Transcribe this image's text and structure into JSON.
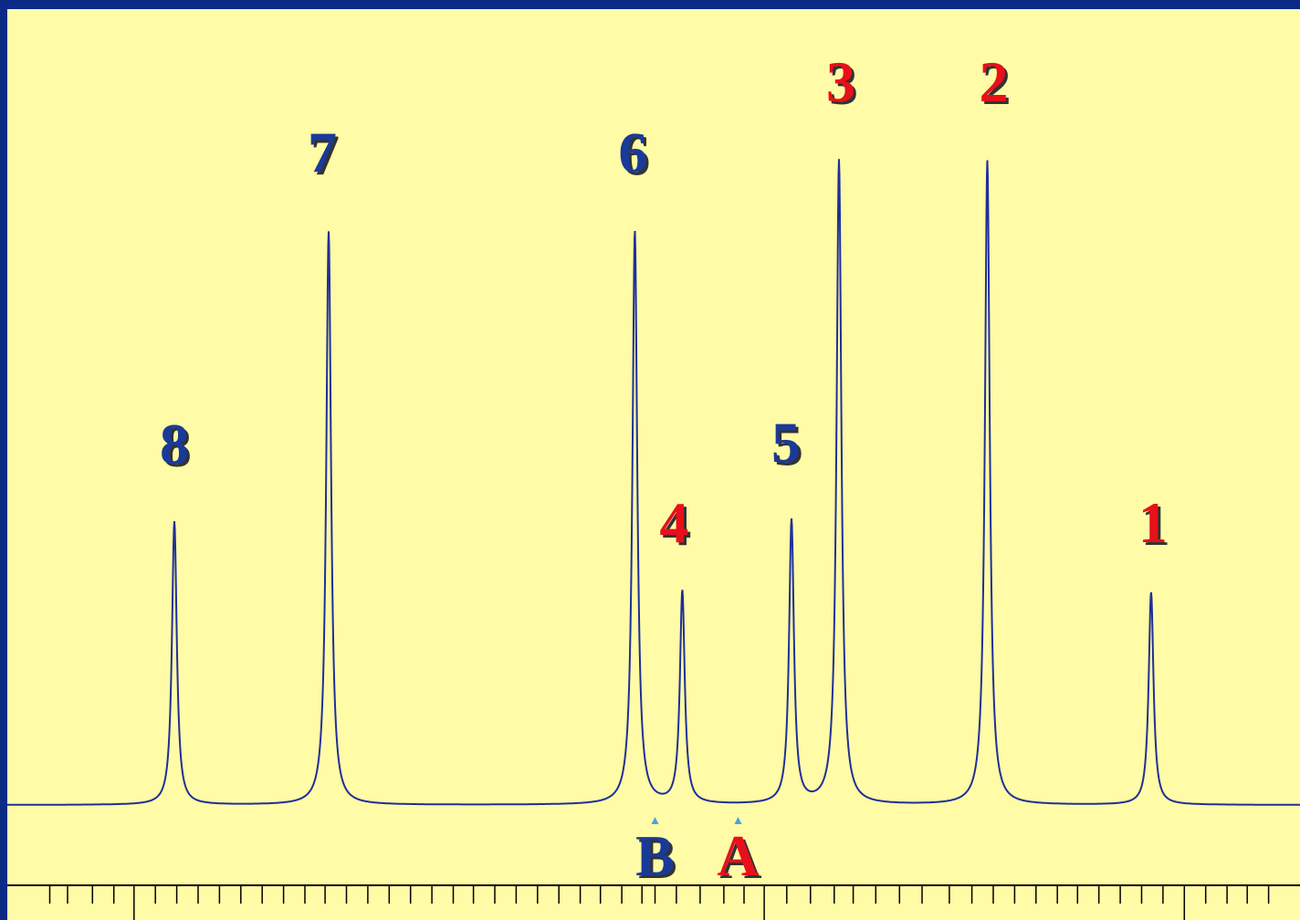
{
  "chart_data": {
    "type": "line",
    "title": "",
    "xlabel": "",
    "ylabel": "",
    "xlim": [
      0,
      1000
    ],
    "ylim": [
      0,
      1.0
    ],
    "grid": false,
    "peaks": [
      {
        "label": "8",
        "x": 20,
        "height": 0.44,
        "group": "B",
        "color": "#1a3a9a"
      },
      {
        "label": "7",
        "x": 150,
        "height": 0.89,
        "group": "B",
        "color": "#1a3a9a"
      },
      {
        "label": "6",
        "x": 408,
        "height": 0.89,
        "group": "B",
        "color": "#1a3a9a"
      },
      {
        "label": "4",
        "x": 448,
        "height": 0.33,
        "group": "A",
        "color": "#e8101a"
      },
      {
        "label": "5",
        "x": 540,
        "height": 0.44,
        "group": "B",
        "color": "#1a3a9a"
      },
      {
        "label": "3",
        "x": 580,
        "height": 1.0,
        "group": "A",
        "color": "#e8101a"
      },
      {
        "label": "2",
        "x": 705,
        "height": 1.0,
        "group": "A",
        "color": "#e8101a"
      },
      {
        "label": "1",
        "x": 843,
        "height": 0.33,
        "group": "A",
        "color": "#e8101a"
      }
    ],
    "markers": [
      {
        "label": "B",
        "x": 425,
        "color": "#1a3a9a"
      },
      {
        "label": "A",
        "x": 495,
        "color": "#e8101a"
      }
    ],
    "tick_positions": [
      -85,
      -70,
      -49,
      -31,
      -14,
      4,
      22,
      40,
      58,
      76,
      94,
      112,
      130,
      147,
      165,
      183,
      201,
      219,
      237,
      255,
      272,
      290,
      308,
      326,
      344,
      362,
      379,
      397,
      414,
      425,
      443,
      463,
      483,
      500,
      517,
      536,
      556,
      576,
      592,
      611,
      631,
      650,
      673,
      692,
      710,
      728,
      746,
      764,
      781,
      799,
      817,
      835,
      853,
      871,
      889,
      907,
      924,
      942
    ],
    "major_ticks": [
      -14,
      163,
      340,
      517,
      694,
      871
    ],
    "colors": {
      "background": "#fffba6",
      "frame": "#0b2a86",
      "spectrum": "#1f2f9a",
      "blue_label": "#1a3a9a",
      "red_label": "#e8101a"
    }
  }
}
